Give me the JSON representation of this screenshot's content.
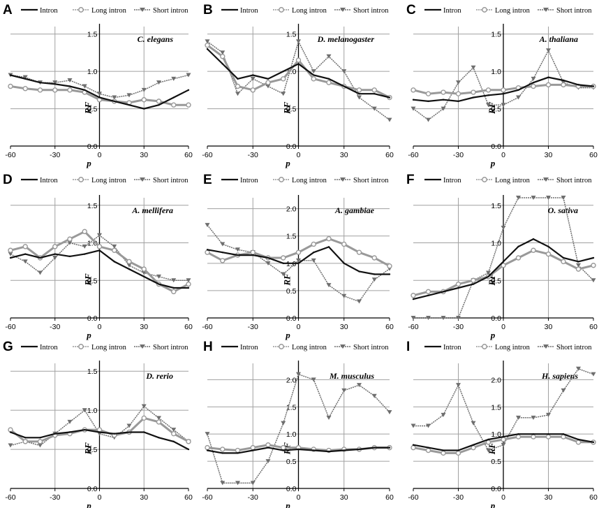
{
  "chart_data": [
    {
      "panel": "A",
      "type": "line",
      "species": "C. elegans",
      "xlabel": "p",
      "ylabel": "RF",
      "xlim": [
        -60,
        60
      ],
      "ylim": [
        0,
        1.6
      ],
      "xticks": [
        "-60",
        "-30",
        "0",
        "30",
        "60"
      ],
      "yticks": [
        "0.0",
        "0.5",
        "1.0",
        "1.5"
      ],
      "x": [
        -60,
        -50,
        -40,
        -30,
        -20,
        -10,
        0,
        10,
        20,
        30,
        40,
        50,
        60
      ],
      "series": [
        {
          "name": "Intron",
          "values": [
            0.95,
            0.9,
            0.85,
            0.83,
            0.8,
            0.75,
            0.65,
            0.6,
            0.55,
            0.5,
            0.55,
            0.65,
            0.75
          ]
        },
        {
          "name": "Long intron",
          "values": [
            0.8,
            0.77,
            0.75,
            0.75,
            0.75,
            0.72,
            0.62,
            0.6,
            0.58,
            0.62,
            0.6,
            0.55,
            0.55
          ]
        },
        {
          "name": "Short intron",
          "values": [
            0.95,
            0.92,
            0.85,
            0.85,
            0.88,
            0.8,
            0.7,
            0.65,
            0.68,
            0.75,
            0.85,
            0.9,
            0.95
          ]
        }
      ]
    },
    {
      "panel": "B",
      "type": "line",
      "species": "D. melanogaster",
      "xlabel": "p",
      "ylabel": "RF",
      "xlim": [
        -60,
        60
      ],
      "ylim": [
        0,
        1.6
      ],
      "xticks": [
        "-60",
        "-30",
        "0",
        "30",
        "60"
      ],
      "yticks": [
        "0.0",
        "0.5",
        "1.0",
        "1.5"
      ],
      "x": [
        -60,
        -50,
        -40,
        -30,
        -20,
        -10,
        0,
        10,
        20,
        30,
        40,
        50,
        60
      ],
      "series": [
        {
          "name": "Intron",
          "values": [
            1.3,
            1.1,
            0.9,
            0.95,
            0.9,
            1.0,
            1.1,
            0.95,
            0.9,
            0.8,
            0.7,
            0.7,
            0.65
          ]
        },
        {
          "name": "Long intron",
          "values": [
            1.35,
            1.2,
            0.8,
            0.75,
            0.85,
            0.9,
            1.15,
            0.9,
            0.85,
            0.8,
            0.75,
            0.75,
            0.65
          ]
        },
        {
          "name": "Short intron",
          "values": [
            1.4,
            1.25,
            0.7,
            0.9,
            0.8,
            0.7,
            1.4,
            1.0,
            1.2,
            1.0,
            0.65,
            0.5,
            0.35
          ]
        }
      ]
    },
    {
      "panel": "C",
      "type": "line",
      "species": "A. thaliana",
      "xlabel": "p",
      "ylabel": "RF",
      "xlim": [
        -60,
        60
      ],
      "ylim": [
        0,
        1.6
      ],
      "xticks": [
        "-60",
        "-30",
        "0",
        "30",
        "60"
      ],
      "yticks": [
        "0.0",
        "0.5",
        "1.0",
        "1.5"
      ],
      "x": [
        -60,
        -50,
        -40,
        -30,
        -20,
        -10,
        0,
        10,
        20,
        30,
        40,
        50,
        60
      ],
      "series": [
        {
          "name": "Intron",
          "values": [
            0.62,
            0.6,
            0.62,
            0.6,
            0.65,
            0.68,
            0.7,
            0.75,
            0.85,
            0.92,
            0.88,
            0.82,
            0.8
          ]
        },
        {
          "name": "Long intron",
          "values": [
            0.75,
            0.7,
            0.72,
            0.7,
            0.72,
            0.75,
            0.75,
            0.78,
            0.8,
            0.82,
            0.82,
            0.8,
            0.8
          ]
        },
        {
          "name": "Short intron",
          "values": [
            0.5,
            0.35,
            0.5,
            0.85,
            1.05,
            0.55,
            0.55,
            0.65,
            0.9,
            1.28,
            0.85,
            0.78,
            0.78
          ]
        }
      ]
    },
    {
      "panel": "D",
      "type": "line",
      "species": "A. mellifera",
      "xlabel": "p",
      "ylabel": "RF",
      "xlim": [
        -60,
        60
      ],
      "ylim": [
        0,
        1.6
      ],
      "xticks": [
        "-60",
        "-30",
        "0",
        "30",
        "60"
      ],
      "yticks": [
        "0.0",
        "0.5",
        "1.0",
        "1.5"
      ],
      "x": [
        -60,
        -50,
        -40,
        -30,
        -20,
        -10,
        0,
        10,
        20,
        30,
        40,
        50,
        60
      ],
      "series": [
        {
          "name": "Intron",
          "values": [
            0.8,
            0.85,
            0.8,
            0.85,
            0.82,
            0.85,
            0.9,
            0.75,
            0.65,
            0.55,
            0.45,
            0.4,
            0.4
          ]
        },
        {
          "name": "Long intron",
          "values": [
            0.9,
            0.95,
            0.8,
            0.95,
            1.05,
            1.15,
            0.95,
            0.9,
            0.75,
            0.65,
            0.45,
            0.35,
            0.45
          ]
        },
        {
          "name": "Short intron",
          "values": [
            0.85,
            0.75,
            0.6,
            0.8,
            1.0,
            0.95,
            1.1,
            0.95,
            0.7,
            0.6,
            0.55,
            0.5,
            0.5
          ]
        }
      ]
    },
    {
      "panel": "E",
      "type": "line",
      "species": "A. gambiae",
      "xlabel": "p",
      "ylabel": "RF",
      "xlim": [
        -60,
        60
      ],
      "ylim": [
        0,
        2.2
      ],
      "xticks": [
        "-60",
        "-30",
        "0",
        "30",
        "60"
      ],
      "yticks": [
        "0.0",
        "0.5",
        "1.0",
        "1.5",
        "2.0"
      ],
      "x": [
        -60,
        -50,
        -40,
        -30,
        -20,
        -10,
        0,
        10,
        20,
        30,
        40,
        50,
        60
      ],
      "series": [
        {
          "name": "Intron",
          "values": [
            1.25,
            1.2,
            1.15,
            1.15,
            1.1,
            1.0,
            1.0,
            1.2,
            1.3,
            1.0,
            0.85,
            0.8,
            0.8
          ]
        },
        {
          "name": "Long intron",
          "values": [
            1.2,
            1.05,
            1.15,
            1.2,
            1.1,
            1.1,
            1.2,
            1.35,
            1.45,
            1.35,
            1.2,
            1.1,
            0.95
          ]
        },
        {
          "name": "Short intron",
          "values": [
            1.7,
            1.35,
            1.25,
            1.2,
            1.0,
            0.8,
            1.05,
            1.05,
            0.6,
            0.4,
            0.3,
            0.7,
            0.9
          ]
        }
      ]
    },
    {
      "panel": "F",
      "type": "line",
      "species": "O. sativa",
      "xlabel": "p",
      "ylabel": "RF",
      "xlim": [
        -60,
        60
      ],
      "ylim": [
        0,
        1.6
      ],
      "xticks": [
        "-60",
        "-30",
        "0",
        "30",
        "60"
      ],
      "yticks": [
        "0.0",
        "0.5",
        "1.0",
        "1.5"
      ],
      "x": [
        -60,
        -50,
        -40,
        -30,
        -20,
        -10,
        0,
        10,
        20,
        30,
        40,
        50,
        60
      ],
      "series": [
        {
          "name": "Intron",
          "values": [
            0.25,
            0.3,
            0.35,
            0.4,
            0.45,
            0.55,
            0.75,
            0.95,
            1.05,
            0.95,
            0.8,
            0.75,
            0.8
          ]
        },
        {
          "name": "Long intron",
          "values": [
            0.3,
            0.35,
            0.35,
            0.45,
            0.5,
            0.55,
            0.7,
            0.8,
            0.9,
            0.85,
            0.75,
            0.65,
            0.7
          ]
        },
        {
          "name": "Short intron",
          "values": [
            0.0,
            0.0,
            0.0,
            0.0,
            0.5,
            0.6,
            1.2,
            1.6,
            1.6,
            1.6,
            1.6,
            0.7,
            0.5
          ]
        }
      ]
    },
    {
      "panel": "G",
      "type": "line",
      "species": "D. rerio",
      "xlabel": "p",
      "ylabel": "RF",
      "xlim": [
        -60,
        60
      ],
      "ylim": [
        0,
        1.6
      ],
      "xticks": [
        "-60",
        "-30",
        "0",
        "30",
        "60"
      ],
      "yticks": [
        "0.0",
        "0.5",
        "1.0",
        "1.5"
      ],
      "x": [
        -60,
        -50,
        -40,
        -30,
        -20,
        -10,
        0,
        10,
        20,
        30,
        40,
        50,
        60
      ],
      "series": [
        {
          "name": "Intron",
          "values": [
            0.72,
            0.65,
            0.65,
            0.7,
            0.72,
            0.75,
            0.72,
            0.7,
            0.72,
            0.72,
            0.65,
            0.6,
            0.5
          ]
        },
        {
          "name": "Long intron",
          "values": [
            0.75,
            0.6,
            0.6,
            0.68,
            0.7,
            0.75,
            0.75,
            0.68,
            0.72,
            0.9,
            0.85,
            0.7,
            0.6
          ]
        },
        {
          "name": "Short intron",
          "values": [
            0.55,
            0.6,
            0.55,
            0.7,
            0.85,
            1.0,
            0.7,
            0.65,
            0.8,
            1.05,
            0.9,
            0.75,
            0.6
          ]
        }
      ]
    },
    {
      "panel": "H",
      "type": "line",
      "species": "M. musculus",
      "xlabel": "p",
      "ylabel": "RF",
      "xlim": [
        -60,
        60
      ],
      "ylim": [
        0,
        2.3
      ],
      "xticks": [
        "-60",
        "-30",
        "0",
        "30",
        "60"
      ],
      "yticks": [
        "0.0",
        "0.5",
        "1.0",
        "1.5",
        "2.0"
      ],
      "x": [
        -60,
        -50,
        -40,
        -30,
        -20,
        -10,
        0,
        10,
        20,
        30,
        40,
        50,
        60
      ],
      "series": [
        {
          "name": "Intron",
          "values": [
            0.7,
            0.65,
            0.65,
            0.7,
            0.75,
            0.7,
            0.72,
            0.7,
            0.68,
            0.7,
            0.72,
            0.75,
            0.75
          ]
        },
        {
          "name": "Long intron",
          "values": [
            0.75,
            0.72,
            0.7,
            0.75,
            0.8,
            0.75,
            0.75,
            0.72,
            0.7,
            0.72,
            0.72,
            0.75,
            0.75
          ]
        },
        {
          "name": "Short intron",
          "values": [
            1.0,
            0.1,
            0.1,
            0.1,
            0.5,
            1.2,
            2.1,
            2.0,
            1.3,
            1.8,
            1.9,
            1.7,
            1.4
          ]
        }
      ]
    },
    {
      "panel": "I",
      "type": "line",
      "species": "H. sapiens",
      "xlabel": "p",
      "ylabel": "RF",
      "xlim": [
        -60,
        60
      ],
      "ylim": [
        0,
        2.3
      ],
      "xticks": [
        "-60",
        "-30",
        "0",
        "30",
        "60"
      ],
      "yticks": [
        "0.0",
        "0.5",
        "1.0",
        "1.5",
        "2.0"
      ],
      "x": [
        -60,
        -50,
        -40,
        -30,
        -20,
        -10,
        0,
        10,
        20,
        30,
        40,
        50,
        60
      ],
      "series": [
        {
          "name": "Intron",
          "values": [
            0.8,
            0.75,
            0.7,
            0.7,
            0.8,
            0.9,
            0.95,
            1.0,
            1.0,
            1.0,
            1.0,
            0.9,
            0.85
          ]
        },
        {
          "name": "Long intron",
          "values": [
            0.75,
            0.7,
            0.65,
            0.65,
            0.75,
            0.85,
            0.9,
            0.95,
            0.95,
            0.95,
            0.95,
            0.85,
            0.85
          ]
        },
        {
          "name": "Short intron",
          "values": [
            1.15,
            1.15,
            1.35,
            1.9,
            1.2,
            0.7,
            0.8,
            1.3,
            1.3,
            1.35,
            1.8,
            2.2,
            2.1
          ]
        }
      ]
    }
  ],
  "colors": {
    "intron": "#111111",
    "long_intron": "#999999",
    "short_intron": "#6e6e6e",
    "grid": "#a0a0a0"
  },
  "marker_icons": {
    "long_intron": "circle-marker",
    "short_intron": "triangle-down-marker"
  }
}
